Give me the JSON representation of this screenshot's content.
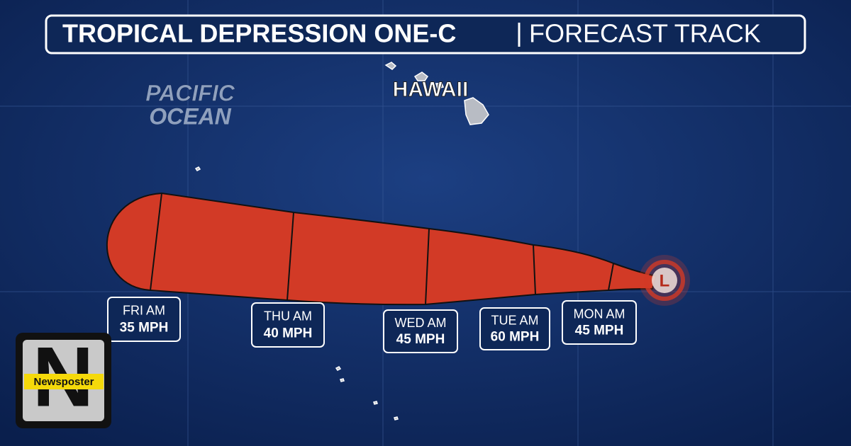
{
  "header": {
    "title": "TROPICAL DEPRESSION ONE-C",
    "subtitle": "FORECAST TRACK"
  },
  "map_labels": {
    "ocean": [
      "PACIFIC",
      "OCEAN"
    ],
    "islands": "HAWAII"
  },
  "storm_center": "L",
  "forecast_points": [
    {
      "day": "FRI AM",
      "wind": "35 MPH"
    },
    {
      "day": "THU AM",
      "wind": "40 MPH"
    },
    {
      "day": "WED AM",
      "wind": "45 MPH"
    },
    {
      "day": "TUE AM",
      "wind": "60 MPH"
    },
    {
      "day": "MON AM",
      "wind": "45 MPH"
    }
  ],
  "logo": {
    "letter": "N",
    "name": "Newsposter"
  }
}
